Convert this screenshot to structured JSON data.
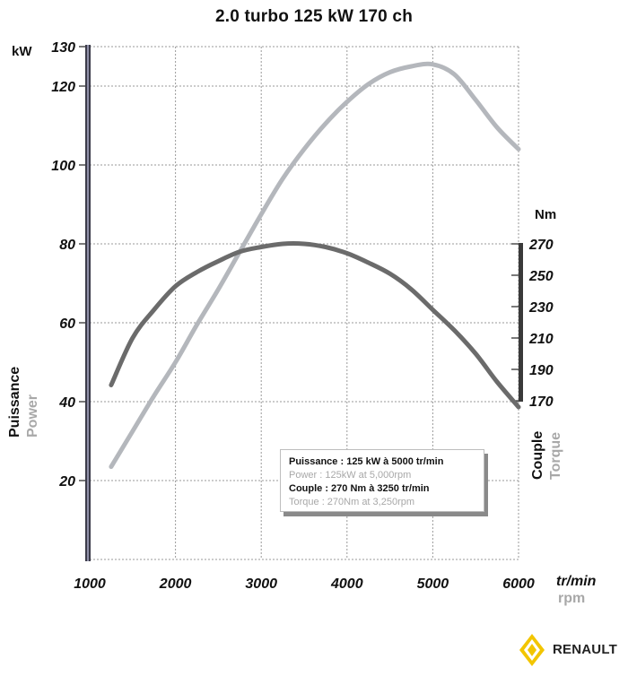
{
  "title": "2.0 turbo 125 kW 170 ch",
  "chart_data": {
    "type": "line",
    "title": "2.0 turbo 125 kW 170 ch",
    "xlabel": "tr/min",
    "xlabel_en": "rpm",
    "x_ticks": [
      1000,
      2000,
      3000,
      4000,
      5000,
      6000
    ],
    "xlim": [
      1000,
      6000
    ],
    "left_axis": {
      "unit": "kW",
      "label_fr": "Puissance",
      "label_en": "Power",
      "ylim": [
        0,
        130
      ],
      "ticks": [
        20,
        40,
        60,
        80,
        100,
        120,
        130
      ]
    },
    "right_axis": {
      "unit": "Nm",
      "label_fr": "Couple",
      "label_en": "Torque",
      "range": [
        170,
        270
      ],
      "ticks": [
        170,
        190,
        210,
        230,
        250,
        270
      ]
    },
    "grid": true,
    "series": [
      {
        "name": "Power",
        "axis": "left",
        "color": "#b4b7bc",
        "x": [
          1250,
          1500,
          1750,
          2000,
          2250,
          2500,
          2750,
          3000,
          3250,
          3500,
          3750,
          4000,
          4250,
          4500,
          4750,
          5000,
          5250,
          5500,
          5750,
          6000
        ],
        "y": [
          23.5,
          32.5,
          41.5,
          50,
          59.5,
          68.5,
          78,
          87.5,
          96.5,
          104,
          110.5,
          116,
          120.5,
          123.5,
          125,
          125.5,
          123,
          116.5,
          109.5,
          104
        ]
      },
      {
        "name": "Torque",
        "axis": "right",
        "color": "#6b6b6b",
        "x": [
          1250,
          1500,
          1750,
          2000,
          2250,
          2500,
          2750,
          3000,
          3250,
          3500,
          3750,
          4000,
          4250,
          4500,
          4750,
          5000,
          5250,
          5500,
          5750,
          6000
        ],
        "y": [
          180,
          210,
          228,
          243,
          252,
          259,
          265,
          268,
          270,
          270,
          268,
          264,
          258,
          251,
          241,
          228,
          215,
          200,
          182,
          166
        ]
      }
    ]
  },
  "legend": {
    "power_fr": "Puissance : 125 kW à 5000 tr/min",
    "power_en": "Power : 125kW at 5,000rpm",
    "torque_fr": "Couple : 270 Nm à 3250 tr/min",
    "torque_en": "Torque : 270Nm at 3,250rpm"
  },
  "brand": {
    "name": "RENAULT",
    "logo_icon": "renault-diamond-icon",
    "logo_color": "#f2c500"
  }
}
